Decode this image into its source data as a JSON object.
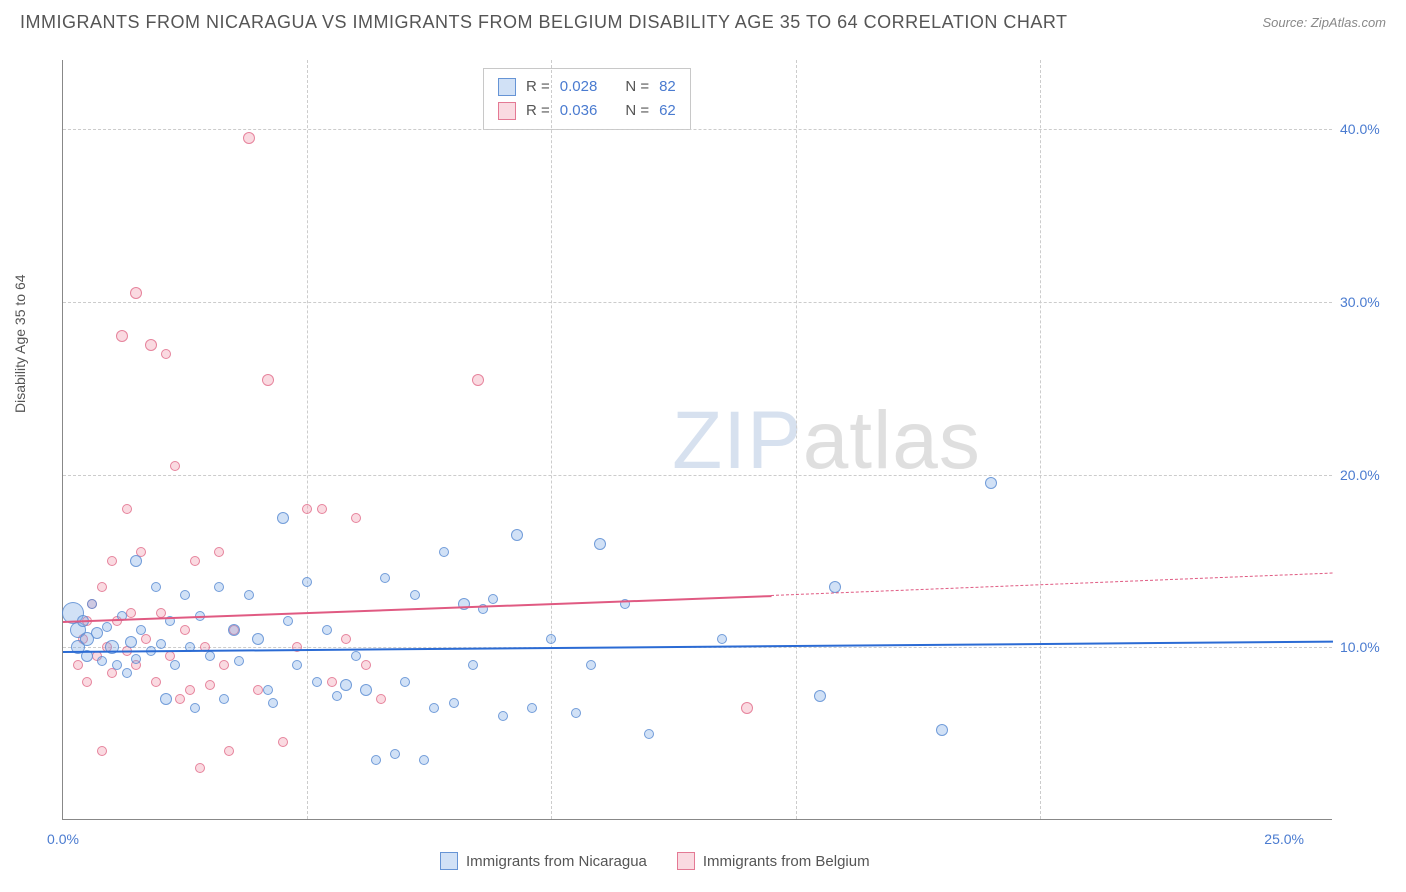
{
  "header": {
    "title": "IMMIGRANTS FROM NICARAGUA VS IMMIGRANTS FROM BELGIUM DISABILITY AGE 35 TO 64 CORRELATION CHART",
    "source": "Source: ZipAtlas.com"
  },
  "watermark": {
    "part1": "ZIP",
    "part2": "atlas"
  },
  "chart": {
    "type": "scatter",
    "ylabel": "Disability Age 35 to 64",
    "xlim": [
      0,
      26
    ],
    "ylim": [
      0,
      44
    ],
    "xticks": [
      {
        "v": 0,
        "label": "0.0%"
      },
      {
        "v": 25,
        "label": "25.0%"
      }
    ],
    "xgrids": [
      5,
      10,
      15,
      20
    ],
    "yticks": [
      {
        "v": 10,
        "label": "10.0%"
      },
      {
        "v": 20,
        "label": "20.0%"
      },
      {
        "v": 30,
        "label": "30.0%"
      },
      {
        "v": 40,
        "label": "40.0%"
      }
    ],
    "series_a": {
      "name": "Immigrants from Nicaragua",
      "color_fill": "rgba(122,168,228,0.35)",
      "color_stroke": "rgba(90,140,210,0.8)",
      "R": "0.028",
      "N": "82",
      "trend": {
        "x1": 0,
        "y1": 9.8,
        "x2": 26,
        "y2": 10.4,
        "color": "#2b6bd4"
      },
      "points": [
        {
          "x": 0.2,
          "y": 12.0,
          "s": 22
        },
        {
          "x": 0.3,
          "y": 11.0,
          "s": 16
        },
        {
          "x": 0.3,
          "y": 10.0,
          "s": 14
        },
        {
          "x": 0.4,
          "y": 11.5,
          "s": 12
        },
        {
          "x": 0.5,
          "y": 10.5,
          "s": 14
        },
        {
          "x": 0.5,
          "y": 9.5,
          "s": 12
        },
        {
          "x": 0.6,
          "y": 12.5,
          "s": 10
        },
        {
          "x": 0.7,
          "y": 10.8,
          "s": 12
        },
        {
          "x": 0.8,
          "y": 9.2,
          "s": 10
        },
        {
          "x": 0.9,
          "y": 11.2,
          "s": 10
        },
        {
          "x": 1.0,
          "y": 10.0,
          "s": 14
        },
        {
          "x": 1.1,
          "y": 9.0,
          "s": 10
        },
        {
          "x": 1.2,
          "y": 11.8,
          "s": 10
        },
        {
          "x": 1.3,
          "y": 8.5,
          "s": 10
        },
        {
          "x": 1.4,
          "y": 10.3,
          "s": 12
        },
        {
          "x": 1.5,
          "y": 9.3,
          "s": 10
        },
        {
          "x": 1.5,
          "y": 15.0,
          "s": 12
        },
        {
          "x": 1.6,
          "y": 11.0,
          "s": 10
        },
        {
          "x": 1.8,
          "y": 9.8,
          "s": 10
        },
        {
          "x": 1.9,
          "y": 13.5,
          "s": 10
        },
        {
          "x": 2.0,
          "y": 10.2,
          "s": 10
        },
        {
          "x": 2.1,
          "y": 7.0,
          "s": 12
        },
        {
          "x": 2.2,
          "y": 11.5,
          "s": 10
        },
        {
          "x": 2.3,
          "y": 9.0,
          "s": 10
        },
        {
          "x": 2.5,
          "y": 13.0,
          "s": 10
        },
        {
          "x": 2.6,
          "y": 10.0,
          "s": 10
        },
        {
          "x": 2.7,
          "y": 6.5,
          "s": 10
        },
        {
          "x": 2.8,
          "y": 11.8,
          "s": 10
        },
        {
          "x": 3.0,
          "y": 9.5,
          "s": 10
        },
        {
          "x": 3.2,
          "y": 13.5,
          "s": 10
        },
        {
          "x": 3.3,
          "y": 7.0,
          "s": 10
        },
        {
          "x": 3.5,
          "y": 11.0,
          "s": 12
        },
        {
          "x": 3.6,
          "y": 9.2,
          "s": 10
        },
        {
          "x": 3.8,
          "y": 13.0,
          "s": 10
        },
        {
          "x": 4.0,
          "y": 10.5,
          "s": 12
        },
        {
          "x": 4.2,
          "y": 7.5,
          "s": 10
        },
        {
          "x": 4.3,
          "y": 6.8,
          "s": 10
        },
        {
          "x": 4.5,
          "y": 17.5,
          "s": 12
        },
        {
          "x": 4.6,
          "y": 11.5,
          "s": 10
        },
        {
          "x": 4.8,
          "y": 9.0,
          "s": 10
        },
        {
          "x": 5.0,
          "y": 13.8,
          "s": 10
        },
        {
          "x": 5.2,
          "y": 8.0,
          "s": 10
        },
        {
          "x": 5.4,
          "y": 11.0,
          "s": 10
        },
        {
          "x": 5.6,
          "y": 7.2,
          "s": 10
        },
        {
          "x": 5.8,
          "y": 7.8,
          "s": 12
        },
        {
          "x": 6.0,
          "y": 9.5,
          "s": 10
        },
        {
          "x": 6.2,
          "y": 7.5,
          "s": 12
        },
        {
          "x": 6.4,
          "y": 3.5,
          "s": 10
        },
        {
          "x": 6.6,
          "y": 14.0,
          "s": 10
        },
        {
          "x": 6.8,
          "y": 3.8,
          "s": 10
        },
        {
          "x": 7.0,
          "y": 8.0,
          "s": 10
        },
        {
          "x": 7.2,
          "y": 13.0,
          "s": 10
        },
        {
          "x": 7.4,
          "y": 3.5,
          "s": 10
        },
        {
          "x": 7.6,
          "y": 6.5,
          "s": 10
        },
        {
          "x": 7.8,
          "y": 15.5,
          "s": 10
        },
        {
          "x": 8.0,
          "y": 6.8,
          "s": 10
        },
        {
          "x": 8.2,
          "y": 12.5,
          "s": 12
        },
        {
          "x": 8.4,
          "y": 9.0,
          "s": 10
        },
        {
          "x": 8.6,
          "y": 12.2,
          "s": 10
        },
        {
          "x": 8.8,
          "y": 12.8,
          "s": 10
        },
        {
          "x": 9.0,
          "y": 6.0,
          "s": 10
        },
        {
          "x": 9.3,
          "y": 16.5,
          "s": 12
        },
        {
          "x": 9.6,
          "y": 6.5,
          "s": 10
        },
        {
          "x": 10.0,
          "y": 10.5,
          "s": 10
        },
        {
          "x": 10.5,
          "y": 6.2,
          "s": 10
        },
        {
          "x": 10.8,
          "y": 9.0,
          "s": 10
        },
        {
          "x": 11.0,
          "y": 16.0,
          "s": 12
        },
        {
          "x": 11.5,
          "y": 12.5,
          "s": 10
        },
        {
          "x": 12.0,
          "y": 5.0,
          "s": 10
        },
        {
          "x": 13.5,
          "y": 10.5,
          "s": 10
        },
        {
          "x": 15.5,
          "y": 7.2,
          "s": 12
        },
        {
          "x": 15.8,
          "y": 13.5,
          "s": 12
        },
        {
          "x": 18.0,
          "y": 5.2,
          "s": 12
        },
        {
          "x": 19.0,
          "y": 19.5,
          "s": 12
        }
      ]
    },
    "series_b": {
      "name": "Immigrants from Belgium",
      "color_fill": "rgba(240,150,170,0.35)",
      "color_stroke": "rgba(225,110,140,0.8)",
      "R": "0.036",
      "N": "62",
      "trend": {
        "x1": 0,
        "y1": 11.5,
        "x_mid": 14.5,
        "y_mid": 13.0,
        "x2": 26,
        "y2": 14.3,
        "color": "#e05a82"
      },
      "points": [
        {
          "x": 0.3,
          "y": 9.0,
          "s": 10
        },
        {
          "x": 0.4,
          "y": 10.5,
          "s": 10
        },
        {
          "x": 0.5,
          "y": 11.5,
          "s": 10
        },
        {
          "x": 0.5,
          "y": 8.0,
          "s": 10
        },
        {
          "x": 0.6,
          "y": 12.5,
          "s": 10
        },
        {
          "x": 0.7,
          "y": 9.5,
          "s": 10
        },
        {
          "x": 0.8,
          "y": 13.5,
          "s": 10
        },
        {
          "x": 0.8,
          "y": 4.0,
          "s": 10
        },
        {
          "x": 0.9,
          "y": 10.0,
          "s": 10
        },
        {
          "x": 1.0,
          "y": 15.0,
          "s": 10
        },
        {
          "x": 1.0,
          "y": 8.5,
          "s": 10
        },
        {
          "x": 1.1,
          "y": 11.5,
          "s": 10
        },
        {
          "x": 1.2,
          "y": 28.0,
          "s": 12
        },
        {
          "x": 1.3,
          "y": 9.8,
          "s": 10
        },
        {
          "x": 1.3,
          "y": 18.0,
          "s": 10
        },
        {
          "x": 1.4,
          "y": 12.0,
          "s": 10
        },
        {
          "x": 1.5,
          "y": 30.5,
          "s": 12
        },
        {
          "x": 1.5,
          "y": 9.0,
          "s": 10
        },
        {
          "x": 1.6,
          "y": 15.5,
          "s": 10
        },
        {
          "x": 1.7,
          "y": 10.5,
          "s": 10
        },
        {
          "x": 1.8,
          "y": 27.5,
          "s": 12
        },
        {
          "x": 1.9,
          "y": 8.0,
          "s": 10
        },
        {
          "x": 2.0,
          "y": 12.0,
          "s": 10
        },
        {
          "x": 2.1,
          "y": 27.0,
          "s": 10
        },
        {
          "x": 2.2,
          "y": 9.5,
          "s": 10
        },
        {
          "x": 2.3,
          "y": 20.5,
          "s": 10
        },
        {
          "x": 2.4,
          "y": 7.0,
          "s": 10
        },
        {
          "x": 2.5,
          "y": 11.0,
          "s": 10
        },
        {
          "x": 2.6,
          "y": 7.5,
          "s": 10
        },
        {
          "x": 2.7,
          "y": 15.0,
          "s": 10
        },
        {
          "x": 2.8,
          "y": 3.0,
          "s": 10
        },
        {
          "x": 2.9,
          "y": 10.0,
          "s": 10
        },
        {
          "x": 3.0,
          "y": 7.8,
          "s": 10
        },
        {
          "x": 3.2,
          "y": 15.5,
          "s": 10
        },
        {
          "x": 3.3,
          "y": 9.0,
          "s": 10
        },
        {
          "x": 3.4,
          "y": 4.0,
          "s": 10
        },
        {
          "x": 3.5,
          "y": 11.0,
          "s": 10
        },
        {
          "x": 3.8,
          "y": 39.5,
          "s": 12
        },
        {
          "x": 4.0,
          "y": 7.5,
          "s": 10
        },
        {
          "x": 4.2,
          "y": 25.5,
          "s": 12
        },
        {
          "x": 4.5,
          "y": 4.5,
          "s": 10
        },
        {
          "x": 4.8,
          "y": 10.0,
          "s": 10
        },
        {
          "x": 5.0,
          "y": 18.0,
          "s": 10
        },
        {
          "x": 5.3,
          "y": 18.0,
          "s": 10
        },
        {
          "x": 5.5,
          "y": 8.0,
          "s": 10
        },
        {
          "x": 5.8,
          "y": 10.5,
          "s": 10
        },
        {
          "x": 6.0,
          "y": 17.5,
          "s": 10
        },
        {
          "x": 6.2,
          "y": 9.0,
          "s": 10
        },
        {
          "x": 6.5,
          "y": 7.0,
          "s": 10
        },
        {
          "x": 8.5,
          "y": 25.5,
          "s": 12
        },
        {
          "x": 14.0,
          "y": 6.5,
          "s": 12
        }
      ]
    },
    "legend_top": {
      "r_label": "R =",
      "n_label": "N ="
    },
    "styling": {
      "bg": "#ffffff",
      "grid": "#cccccc",
      "axis": "#888888",
      "tick_color": "#4a7bd0",
      "label_color": "#555555",
      "title_fontsize": 18,
      "tick_fontsize": 14,
      "point_opacity": 0.35
    }
  }
}
